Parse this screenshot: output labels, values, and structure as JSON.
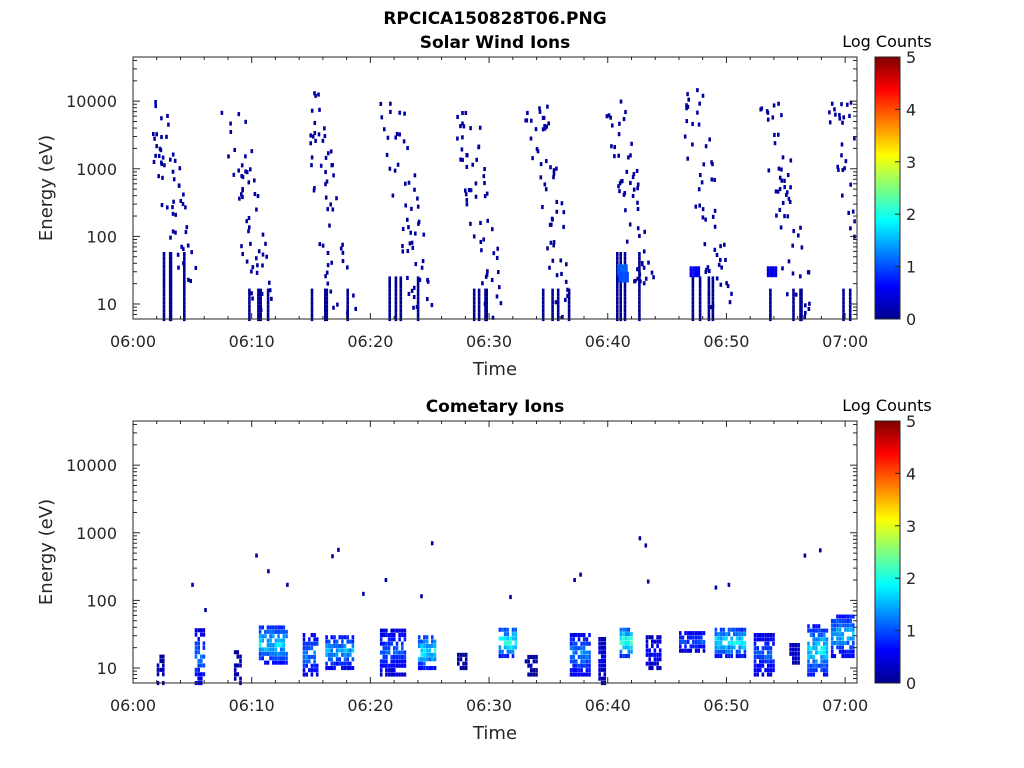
{
  "figure_title": "RPCICA150828T06.PNG",
  "colorscale": [
    "#00008f",
    "#0000ff",
    "#00ffff",
    "#ffff00",
    "#ff8000",
    "#800000"
  ],
  "chart_data": [
    {
      "type": "heatmap",
      "title": "Solar Wind Ions",
      "xlabel": "Time",
      "ylabel": "Energy (eV)",
      "x_scale": "time",
      "y_scale": "log",
      "xlim": [
        "06:00",
        "07:01"
      ],
      "ylim": [
        6,
        45000
      ],
      "xticks": [
        "06:00",
        "06:10",
        "06:20",
        "06:30",
        "06:40",
        "06:50",
        "07:00"
      ],
      "yticks": [
        {
          "value": 10,
          "label": "10"
        },
        {
          "value": 100,
          "label": "100"
        },
        {
          "value": 1000,
          "label": "1000"
        },
        {
          "value": 10000,
          "label": "10000"
        }
      ],
      "colorbar": {
        "label": "Log Counts",
        "min": 0,
        "max": 5,
        "ticks": [
          "0",
          "1",
          "2",
          "3",
          "4",
          "5"
        ]
      },
      "grid": false,
      "bursts": [
        {
          "t": 1.8,
          "w": 3.0,
          "high": 10000,
          "low": 20
        },
        {
          "t": 8.3,
          "w": 3.0,
          "high": 8000,
          "low": 6
        },
        {
          "t": 14.8,
          "w": 3.2,
          "high": 15000,
          "low": 6
        },
        {
          "t": 21.5,
          "w": 3.2,
          "high": 12000,
          "low": 8
        },
        {
          "t": 27.8,
          "w": 3.0,
          "high": 9000,
          "low": 6
        },
        {
          "t": 33.8,
          "w": 3.0,
          "high": 9000,
          "low": 6
        },
        {
          "t": 40.5,
          "w": 2.8,
          "high": 12000,
          "low": 20
        },
        {
          "t": 46.8,
          "w": 3.2,
          "high": 15000,
          "low": 8
        },
        {
          "t": 53.5,
          "w": 3.2,
          "high": 12000,
          "low": 6
        },
        {
          "t": 59.3,
          "w": 3.2,
          "high": 12000,
          "low": 6
        }
      ],
      "hot_spots": [
        {
          "t": 41.2,
          "e": 32,
          "level": 1.1
        },
        {
          "t": 41.3,
          "e": 25,
          "level": 1.0
        },
        {
          "t": 47.3,
          "e": 30,
          "level": 0.6
        },
        {
          "t": 53.8,
          "e": 30,
          "level": 0.5
        }
      ]
    },
    {
      "type": "heatmap",
      "title": "Cometary Ions",
      "xlabel": "Time",
      "ylabel": "Energy (eV)",
      "x_scale": "time",
      "y_scale": "log",
      "xlim": [
        "06:00",
        "07:01"
      ],
      "ylim": [
        6,
        45000
      ],
      "xticks": [
        "06:00",
        "06:10",
        "06:20",
        "06:30",
        "06:40",
        "06:50",
        "07:00"
      ],
      "yticks": [
        {
          "value": 10,
          "label": "10"
        },
        {
          "value": 100,
          "label": "100"
        },
        {
          "value": 1000,
          "label": "1000"
        },
        {
          "value": 10000,
          "label": "10000"
        }
      ],
      "colorbar": {
        "label": "Log Counts",
        "min": 0,
        "max": 5,
        "ticks": [
          "0",
          "1",
          "2",
          "3",
          "4",
          "5"
        ]
      },
      "grid": false,
      "clusters": [
        {
          "t0": 2.0,
          "t1": 2.6,
          "e_lo": 6,
          "e_hi": 16,
          "peak": 0.3
        },
        {
          "t0": 5.2,
          "t1": 6.0,
          "e_lo": 6,
          "e_hi": 40,
          "peak": 1.4
        },
        {
          "t0": 8.5,
          "t1": 9.0,
          "e_lo": 6,
          "e_hi": 18,
          "peak": 0.3
        },
        {
          "t0": 10.6,
          "t1": 13.0,
          "e_lo": 12,
          "e_hi": 45,
          "peak": 2.0
        },
        {
          "t0": 14.3,
          "t1": 15.5,
          "e_lo": 8,
          "e_hi": 32,
          "peak": 1.5
        },
        {
          "t0": 16.2,
          "t1": 18.5,
          "e_lo": 10,
          "e_hi": 32,
          "peak": 1.7
        },
        {
          "t0": 20.8,
          "t1": 23.0,
          "e_lo": 8,
          "e_hi": 40,
          "peak": 1.2
        },
        {
          "t0": 24.0,
          "t1": 25.5,
          "e_lo": 10,
          "e_hi": 32,
          "peak": 2.2
        },
        {
          "t0": 27.3,
          "t1": 28.0,
          "e_lo": 10,
          "e_hi": 16,
          "peak": 0.3
        },
        {
          "t0": 30.8,
          "t1": 32.2,
          "e_lo": 15,
          "e_hi": 40,
          "peak": 2.4
        },
        {
          "t0": 33.0,
          "t1": 34.0,
          "e_lo": 8,
          "e_hi": 16,
          "peak": 0.3
        },
        {
          "t0": 36.8,
          "t1": 38.5,
          "e_lo": 8,
          "e_hi": 32,
          "peak": 1.6
        },
        {
          "t0": 39.2,
          "t1": 39.7,
          "e_lo": 6,
          "e_hi": 30,
          "peak": 0.6
        },
        {
          "t0": 41.0,
          "t1": 42.1,
          "e_lo": 15,
          "e_hi": 40,
          "peak": 2.5
        },
        {
          "t0": 43.2,
          "t1": 44.5,
          "e_lo": 10,
          "e_hi": 30,
          "peak": 0.8
        },
        {
          "t0": 46.0,
          "t1": 48.0,
          "e_lo": 18,
          "e_hi": 35,
          "peak": 1.2
        },
        {
          "t0": 49.0,
          "t1": 51.5,
          "e_lo": 15,
          "e_hi": 40,
          "peak": 2.2
        },
        {
          "t0": 52.3,
          "t1": 54.0,
          "e_lo": 8,
          "e_hi": 32,
          "peak": 1.3
        },
        {
          "t0": 55.3,
          "t1": 56.0,
          "e_lo": 12,
          "e_hi": 25,
          "peak": 0.5
        },
        {
          "t0": 56.8,
          "t1": 58.5,
          "e_lo": 8,
          "e_hi": 45,
          "peak": 2.1
        },
        {
          "t0": 58.8,
          "t1": 60.6,
          "e_lo": 15,
          "e_hi": 65,
          "peak": 1.8
        }
      ],
      "scattered_points": [
        {
          "t": 10.3,
          "e": 460
        },
        {
          "t": 11.3,
          "e": 270
        },
        {
          "t": 12.9,
          "e": 170
        },
        {
          "t": 16.7,
          "e": 450
        },
        {
          "t": 17.2,
          "e": 560
        },
        {
          "t": 19.3,
          "e": 125
        },
        {
          "t": 21.2,
          "e": 200
        },
        {
          "t": 25.1,
          "e": 700
        },
        {
          "t": 24.2,
          "e": 115
        },
        {
          "t": 31.7,
          "e": 112
        },
        {
          "t": 37.1,
          "e": 200
        },
        {
          "t": 37.6,
          "e": 240
        },
        {
          "t": 42.6,
          "e": 830
        },
        {
          "t": 43.1,
          "e": 650
        },
        {
          "t": 43.3,
          "e": 190
        },
        {
          "t": 49.0,
          "e": 155
        },
        {
          "t": 50.1,
          "e": 170
        },
        {
          "t": 56.5,
          "e": 460
        },
        {
          "t": 57.8,
          "e": 550
        },
        {
          "t": 4.9,
          "e": 170
        },
        {
          "t": 6.0,
          "e": 72
        }
      ]
    }
  ]
}
